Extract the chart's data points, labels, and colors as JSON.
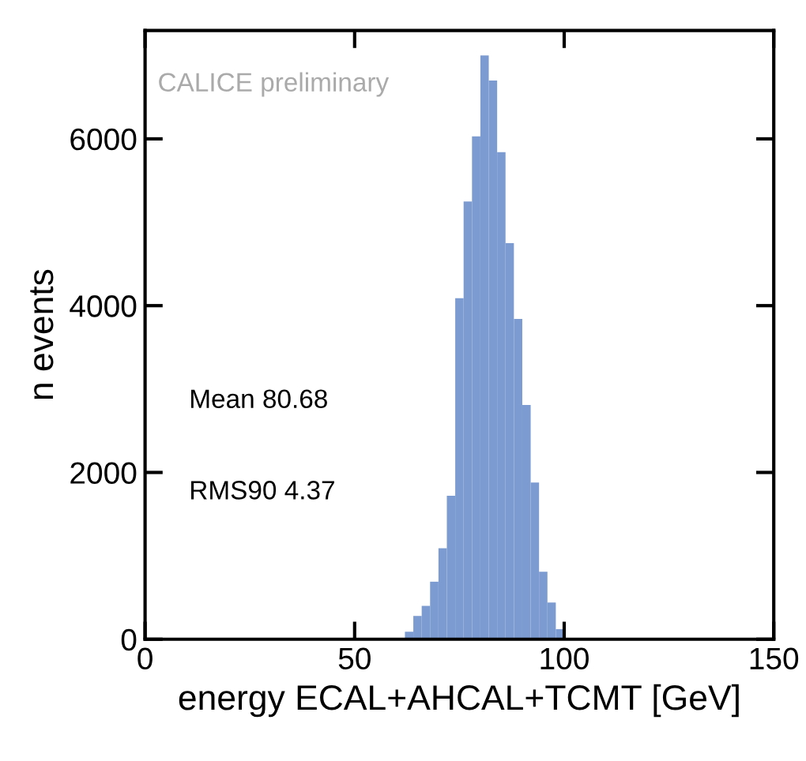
{
  "chart_data": {
    "type": "histogram",
    "xlabel": "energy ECAL+AHCAL+TCMT [GeV]",
    "ylabel": "n events",
    "bins": [
      60,
      62,
      64,
      66,
      68,
      70,
      72,
      74,
      76,
      78,
      80,
      82,
      84,
      86,
      88,
      90,
      92,
      94,
      96,
      98,
      100,
      102
    ],
    "values": [
      null,
      90,
      280,
      400,
      690,
      1090,
      1720,
      4090,
      5250,
      6030,
      7000,
      6700,
      5840,
      4750,
      3840,
      2810,
      1880,
      810,
      440,
      120,
      null
    ],
    "color": "#7b9bd1",
    "xlim": [
      0,
      150
    ],
    "xticks": [
      0,
      50,
      100,
      150
    ],
    "ylim": [
      0,
      7300
    ],
    "yticks": [
      0,
      2000,
      4000,
      6000
    ],
    "annotations": [
      "CALICE preliminary",
      "Mean 80.68",
      "RMS90 4.37"
    ],
    "grid": false,
    "legend": false
  }
}
